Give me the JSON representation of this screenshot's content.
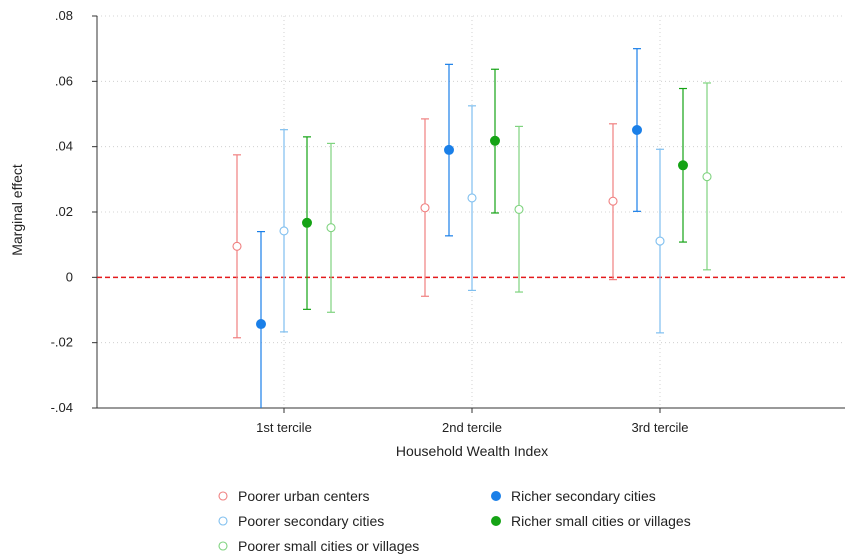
{
  "chart_data": {
    "type": "scatter",
    "title": "",
    "xlabel": "Household Wealth Index",
    "ylabel": "Marginal effect",
    "categories": [
      "1st tercile",
      "2nd tercile",
      "3rd tercile"
    ],
    "ylim": [
      -0.04,
      0.08
    ],
    "yticks": [
      -0.04,
      -0.02,
      0,
      0.02,
      0.04,
      0.06,
      0.08
    ],
    "ytick_labels": [
      "-.04",
      "-.02",
      "0",
      ".02",
      ".04",
      ".06",
      ".08"
    ],
    "grid": true,
    "reference_line": {
      "y": 0,
      "color": "#e41a1c",
      "style": "dashed"
    },
    "legend_position": "bottom",
    "series": [
      {
        "name": "Poorer urban centers",
        "color": "#f08080",
        "filled": false,
        "estimates": [
          0.0095,
          0.0213,
          0.0233
        ],
        "ci_lower": [
          -0.0185,
          -0.0058,
          -0.0007
        ],
        "ci_upper": [
          0.0375,
          0.0485,
          0.047
        ]
      },
      {
        "name": "Richer secondary cities",
        "color": "#1a7fe8",
        "filled": true,
        "estimates": [
          -0.0143,
          0.039,
          0.0451
        ],
        "ci_lower": [
          -0.043,
          0.0127,
          0.0202
        ],
        "ci_upper": [
          0.014,
          0.0652,
          0.07
        ]
      },
      {
        "name": "Poorer secondary cities",
        "color": "#7fbfef",
        "filled": false,
        "estimates": [
          0.0142,
          0.0243,
          0.0111
        ],
        "ci_lower": [
          -0.0167,
          -0.004,
          -0.017
        ],
        "ci_upper": [
          0.0452,
          0.0525,
          0.0392
        ]
      },
      {
        "name": "Richer small cities or villages",
        "color": "#15a315",
        "filled": true,
        "estimates": [
          0.0167,
          0.0418,
          0.0343
        ],
        "ci_lower": [
          -0.0098,
          0.0197,
          0.0108
        ],
        "ci_upper": [
          0.043,
          0.0637,
          0.0578
        ]
      },
      {
        "name": "Poorer small cities or villages",
        "color": "#7fd37f",
        "filled": false,
        "estimates": [
          0.0152,
          0.0208,
          0.0308
        ],
        "ci_lower": [
          -0.0107,
          -0.0045,
          0.0023
        ],
        "ci_upper": [
          0.041,
          0.0462,
          0.0595
        ]
      }
    ]
  }
}
